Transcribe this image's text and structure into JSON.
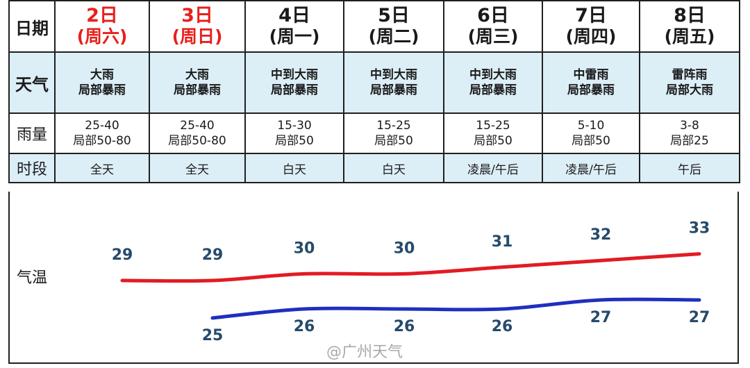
{
  "row_labels": {
    "date": "日期",
    "weather": "天气",
    "rain": "雨量",
    "period": "时段",
    "temperature": "气温"
  },
  "days": [
    {
      "day": "2日",
      "weekday": "(周六)",
      "weekend": true,
      "weather1": "大雨",
      "weather2": "局部暴雨",
      "rain1": "25-40",
      "rain2": "局部50-80",
      "period": "全天"
    },
    {
      "day": "3日",
      "weekday": "(周日)",
      "weekend": true,
      "weather1": "大雨",
      "weather2": "局部暴雨",
      "rain1": "25-40",
      "rain2": "局部50-80",
      "period": "全天"
    },
    {
      "day": "4日",
      "weekday": "(周一)",
      "weekend": false,
      "weather1": "中到大雨",
      "weather2": "局部暴雨",
      "rain1": "15-30",
      "rain2": "局部50",
      "period": "白天"
    },
    {
      "day": "5日",
      "weekday": "(周二)",
      "weekend": false,
      "weather1": "中到大雨",
      "weather2": "局部暴雨",
      "rain1": "15-25",
      "rain2": "局部50",
      "period": "白天"
    },
    {
      "day": "6日",
      "weekday": "(周三)",
      "weekend": false,
      "weather1": "中到大雨",
      "weather2": "局部暴雨",
      "rain1": "15-25",
      "rain2": "局部50",
      "period": "凌晨/午后"
    },
    {
      "day": "7日",
      "weekday": "(周四)",
      "weekend": false,
      "weather1": "中雷雨",
      "weather2": "局部暴雨",
      "rain1": "5-10",
      "rain2": "局部50",
      "period": "凌晨/午后"
    },
    {
      "day": "8日",
      "weekday": "(周五)",
      "weekend": false,
      "weather1": "雷阵雨",
      "weather2": "局部大雨",
      "rain1": "3-8",
      "rain2": "局部25",
      "period": "午后"
    }
  ],
  "chart_data": {
    "type": "line",
    "categories": [
      "2日",
      "3日",
      "4日",
      "5日",
      "6日",
      "7日",
      "8日"
    ],
    "series": [
      {
        "values": [
          29,
          29,
          30,
          30,
          31,
          32,
          33
        ],
        "color": "#e31b23"
      },
      {
        "values": [
          null,
          25,
          26,
          26,
          26,
          27,
          27
        ],
        "color": "#1f2fbf"
      }
    ],
    "label_color": "#274a6b"
  },
  "watermark": "@广州天气",
  "colors": {
    "weekend": "#e8201c",
    "header_band": "#dceef6",
    "border": "#1f1f1f"
  }
}
